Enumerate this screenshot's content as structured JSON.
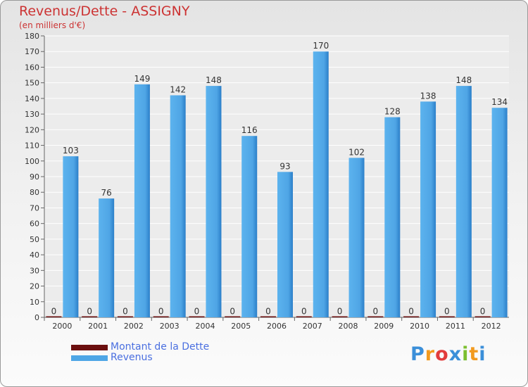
{
  "header": {
    "title": "Revenus/Dette - ASSIGNY",
    "subtitle": "(en milliers d'€)"
  },
  "chart_data": {
    "type": "bar",
    "title": "Revenus/Dette - ASSIGNY",
    "ylabel": "(en milliers d'€)",
    "xlabel": "",
    "ylim": [
      0,
      180
    ],
    "ytick_step": 10,
    "grid": true,
    "legend_position": "bottom-left",
    "categories": [
      "2000",
      "2001",
      "2002",
      "2003",
      "2004",
      "2005",
      "2006",
      "2007",
      "2008",
      "2009",
      "2010",
      "2011",
      "2012"
    ],
    "series": [
      {
        "name": "Montant de la Dette",
        "color": "#6b0f0f",
        "values": [
          0,
          0,
          0,
          0,
          0,
          0,
          0,
          0,
          0,
          0,
          0,
          0,
          0
        ]
      },
      {
        "name": "Revenus",
        "color": "#4ea6e6",
        "values": [
          103,
          76,
          149,
          142,
          148,
          116,
          93,
          170,
          102,
          128,
          138,
          148,
          134
        ]
      }
    ]
  },
  "legend": {
    "items": [
      {
        "label": "Montant de la Dette",
        "color": "#6b0f0f"
      },
      {
        "label": "Revenus",
        "color": "#4ea6e6"
      }
    ]
  },
  "logo": {
    "text": "Proxiti",
    "letters": [
      "P",
      "r",
      "o",
      "x",
      "i",
      "t",
      "i"
    ],
    "colors": [
      "#3b8fd9",
      "#f29a1e",
      "#e23c3c",
      "#3b8fd9",
      "#7cbf2f",
      "#f29a1e",
      "#3b8fd9"
    ]
  }
}
